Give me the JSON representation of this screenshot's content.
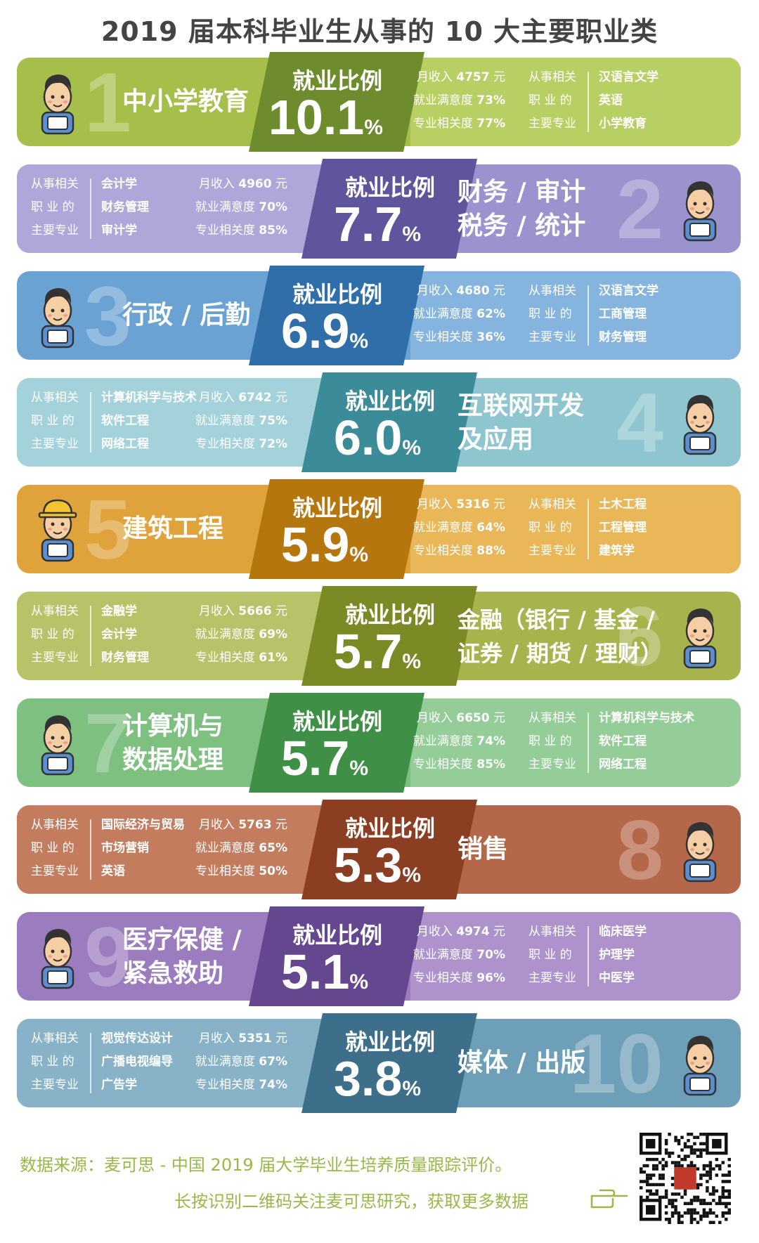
{
  "title": "2019 届本科毕业生从事的 10 大主要职业类",
  "labels": {
    "ratio": "就业比例",
    "pct": "%",
    "income_prefix": "月收入",
    "income_unit": "元",
    "satisfaction": "就业满意度",
    "relevance": "专业相关度",
    "majors_line1": "从事相关",
    "majors_line2": "职 业 的",
    "majors_line3": "主要专业"
  },
  "rows": [
    {
      "rank": "1",
      "occupation": [
        "中小学教育"
      ],
      "ratio": "10.1",
      "income": "4757",
      "satisfaction": "73%",
      "relevance": "77%",
      "majors": [
        "汉语言文学",
        "英语",
        "小学教育"
      ],
      "color_main": "#a6bf4b",
      "color_dark": "#6e8c2e",
      "color_light": "#b8cf63",
      "side": "left",
      "avatar": "teacher-icon"
    },
    {
      "rank": "2",
      "occupation": [
        "财务 / 审计",
        "税务 / 统计"
      ],
      "ratio": "7.7",
      "income": "4960",
      "satisfaction": "70%",
      "relevance": "85%",
      "majors": [
        "会计学",
        "财务管理",
        "审计学"
      ],
      "color_main": "#9b93cd",
      "color_dark": "#5f559c",
      "color_light": "#aea7d9",
      "side": "right",
      "avatar": "accountant-icon"
    },
    {
      "rank": "3",
      "occupation": [
        "行政 / 后勤"
      ],
      "ratio": "6.9",
      "income": "4680",
      "satisfaction": "62%",
      "relevance": "36%",
      "majors": [
        "汉语言文学",
        "工商管理",
        "财务管理"
      ],
      "color_main": "#6aa2d4",
      "color_dark": "#2f6ea8",
      "color_light": "#85b5df",
      "side": "left",
      "avatar": "admin-icon"
    },
    {
      "rank": "4",
      "occupation": [
        "互联网开发",
        "及应用"
      ],
      "ratio": "6.0",
      "income": "6742",
      "satisfaction": "75%",
      "relevance": "72%",
      "majors": [
        "计算机科学与技术",
        "软件工程",
        "网络工程"
      ],
      "color_main": "#8ec5cf",
      "color_dark": "#3c8b98",
      "color_light": "#a4d2da",
      "side": "right",
      "avatar": "developer-icon"
    },
    {
      "rank": "5",
      "occupation": [
        "建筑工程"
      ],
      "ratio": "5.9",
      "income": "5316",
      "satisfaction": "64%",
      "relevance": "88%",
      "majors": [
        "土木工程",
        "工程管理",
        "建筑学"
      ],
      "color_main": "#e0a23a",
      "color_dark": "#b5760e",
      "color_light": "#e9b658",
      "side": "left",
      "avatar": "construction-worker-icon"
    },
    {
      "rank": "6",
      "occupation": [
        "金融（银行 / 基金 /",
        "证券 / 期货 / 理财）"
      ],
      "ratio": "5.7",
      "income": "5666",
      "satisfaction": "69%",
      "relevance": "61%",
      "majors": [
        "金融学",
        "会计学",
        "财务管理"
      ],
      "color_main": "#a7b34d",
      "color_dark": "#7c8a26",
      "color_light": "#b8c268",
      "side": "right",
      "avatar": "banker-icon"
    },
    {
      "rank": "7",
      "occupation": [
        "计算机与",
        "数据处理"
      ],
      "ratio": "5.7",
      "income": "6650",
      "satisfaction": "74%",
      "relevance": "85%",
      "majors": [
        "计算机科学与技术",
        "软件工程",
        "网络工程"
      ],
      "color_main": "#7dc080",
      "color_dark": "#3f8f46",
      "color_light": "#94cd97",
      "side": "left",
      "avatar": "programmer-icon"
    },
    {
      "rank": "8",
      "occupation": [
        "销售"
      ],
      "ratio": "5.3",
      "income": "5763",
      "satisfaction": "65%",
      "relevance": "50%",
      "majors": [
        "国际经济与贸易",
        "市场营销",
        "英语"
      ],
      "color_main": "#b5674a",
      "color_dark": "#8b3e22",
      "color_light": "#c47c5f",
      "side": "right",
      "avatar": "salesman-icon"
    },
    {
      "rank": "9",
      "occupation": [
        "医疗保健 /",
        "紧急救助"
      ],
      "ratio": "5.1",
      "income": "4974",
      "satisfaction": "70%",
      "relevance": "96%",
      "majors": [
        "临床医学",
        "护理学",
        "中医学"
      ],
      "color_main": "#9b7cbf",
      "color_dark": "#654790",
      "color_light": "#ad92cc",
      "side": "left",
      "avatar": "doctor-icon"
    },
    {
      "rank": "10",
      "occupation": [
        "媒体 / 出版"
      ],
      "ratio": "3.8",
      "income": "5351",
      "satisfaction": "67%",
      "relevance": "74%",
      "majors": [
        "视觉传达设计",
        "广播电视编导",
        "广告学"
      ],
      "color_main": "#6e9fb8",
      "color_dark": "#3d6f8a",
      "color_light": "#87b2c8",
      "side": "right",
      "avatar": "reader-icon"
    }
  ],
  "chart_data": {
    "type": "bar",
    "title": "2019 届本科毕业生从事的 10 大主要职业类",
    "categories": [
      "中小学教育",
      "财务 / 审计 税务 / 统计",
      "行政 / 后勤",
      "互联网开发 及应用",
      "建筑工程",
      "金融（银行 / 基金 / 证券 / 期货 / 理财）",
      "计算机与 数据处理",
      "销售",
      "医疗保健 / 紧急救助",
      "媒体 / 出版"
    ],
    "series": [
      {
        "name": "就业比例",
        "values": [
          10.1,
          7.7,
          6.9,
          6.0,
          5.9,
          5.7,
          5.7,
          5.3,
          5.1,
          3.8
        ]
      },
      {
        "name": "月收入",
        "values": [
          4757,
          4960,
          4680,
          6742,
          5316,
          5666,
          6650,
          5763,
          4974,
          5351
        ]
      },
      {
        "name": "就业满意度",
        "values": [
          73,
          70,
          62,
          75,
          64,
          69,
          74,
          65,
          70,
          67
        ]
      },
      {
        "name": "专业相关度",
        "values": [
          77,
          85,
          36,
          72,
          88,
          61,
          85,
          50,
          96,
          74
        ]
      }
    ]
  },
  "footer": {
    "source": "数据来源：麦可思 - 中国 2019 届大学毕业生培养质量跟踪评价。",
    "tip": "长按识别二维码关注麦可思研究，获取更多数据"
  }
}
